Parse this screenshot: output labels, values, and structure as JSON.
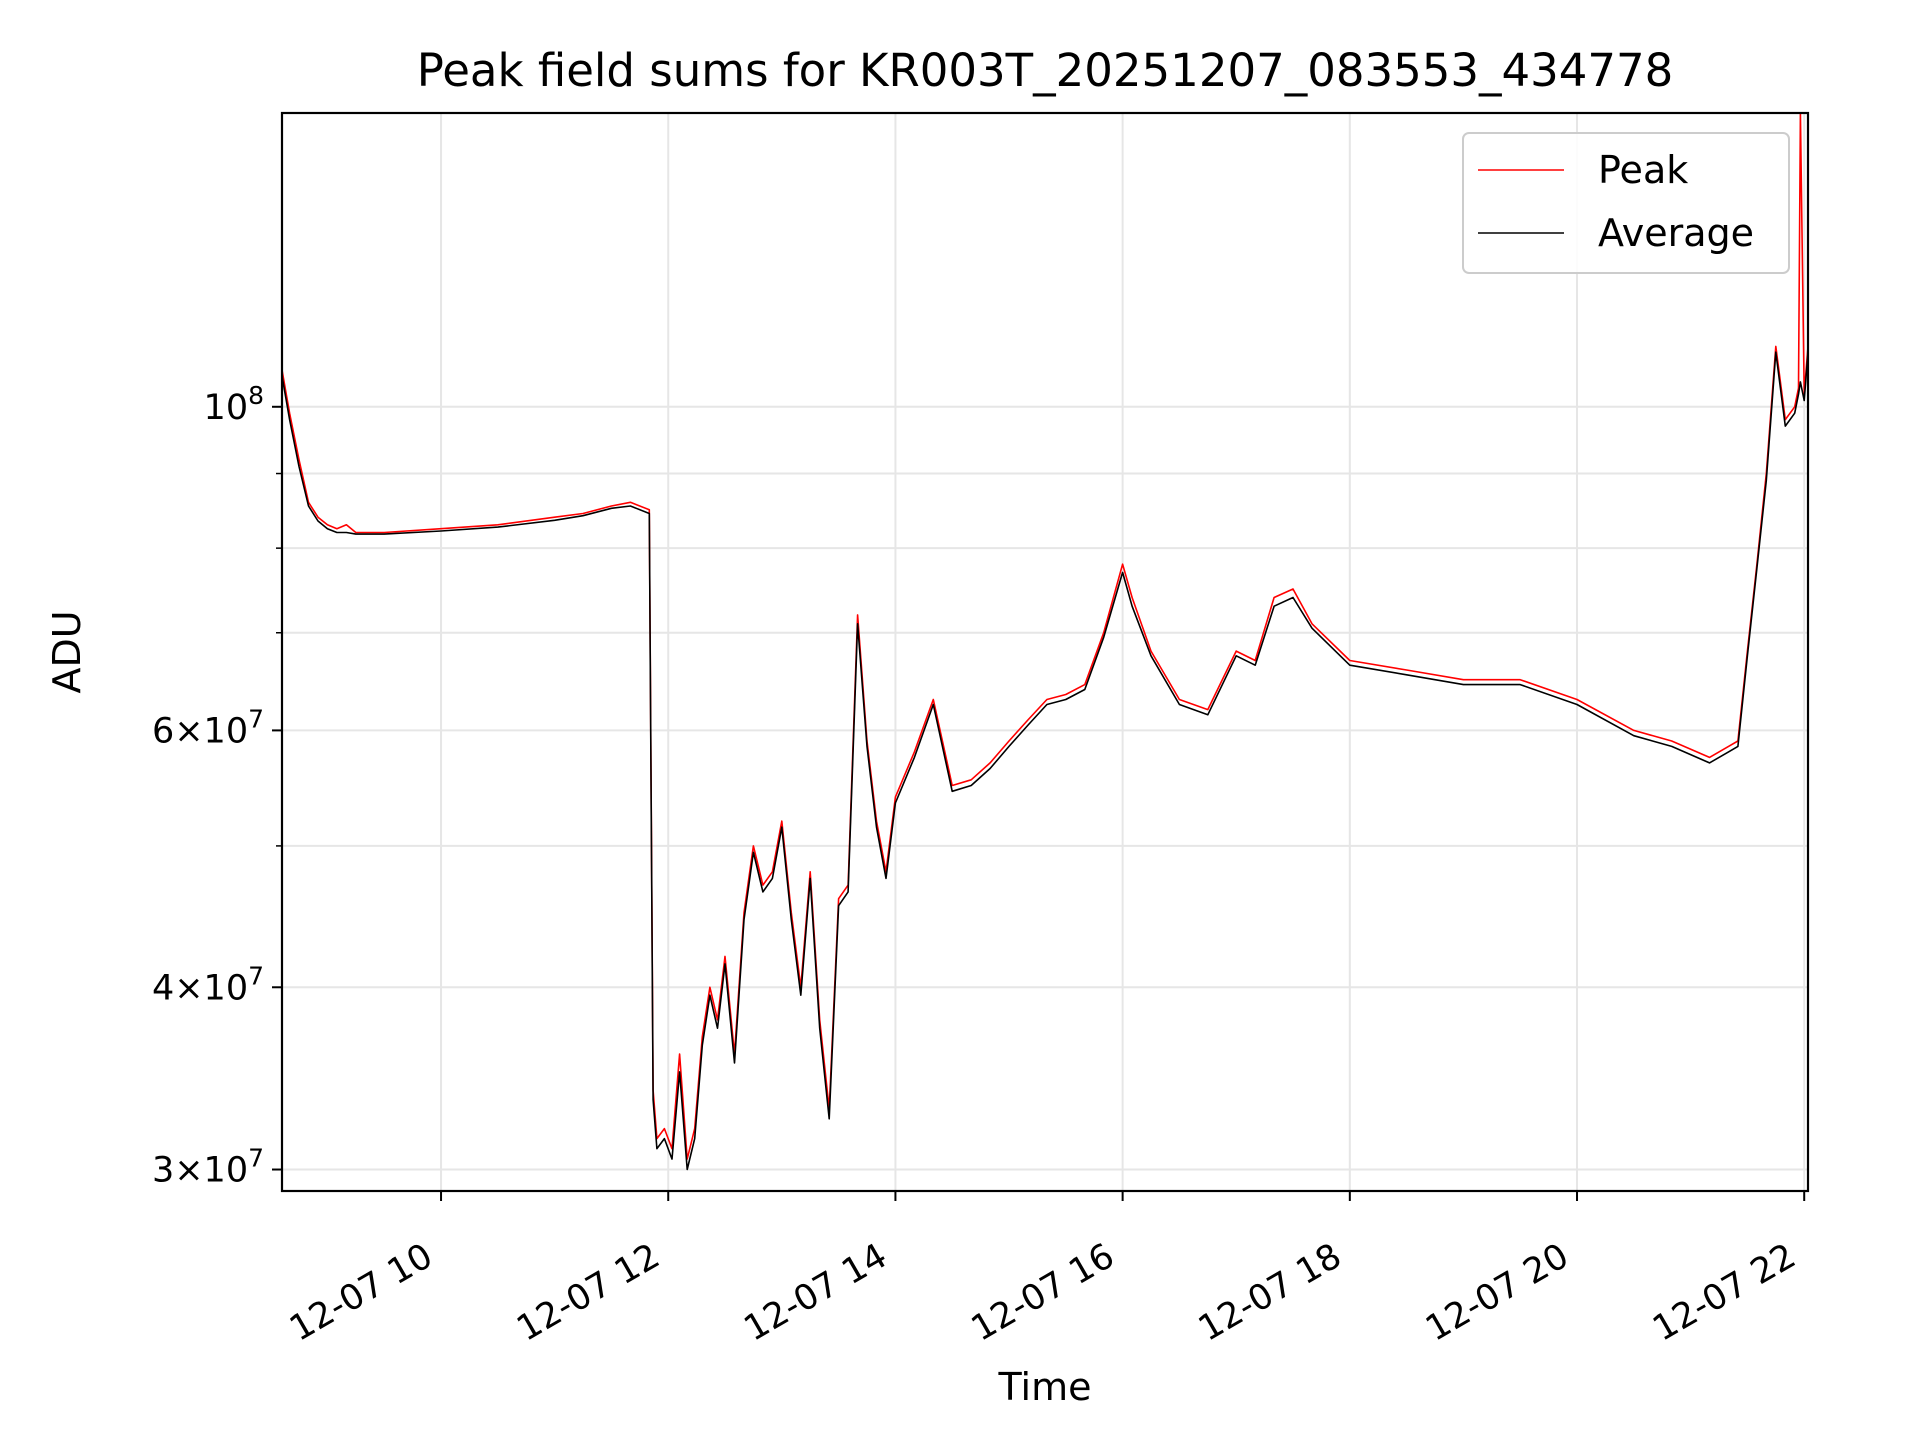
{
  "chart_data": {
    "type": "line",
    "title": "Peak field sums for KR003T_20251207_083553_434778",
    "xlabel": "Time",
    "ylabel": "ADU",
    "x_range": [
      "2025-12-07 08:36",
      "2025-12-07 22:02"
    ],
    "ylim": [
      29000000,
      159000000
    ],
    "y_scale": "log",
    "grid": true,
    "legend_position": "top-right",
    "x_ticks": [
      {
        "value": "2025-12-07 10:00",
        "label": "12-07 10"
      },
      {
        "value": "2025-12-07 12:00",
        "label": "12-07 12"
      },
      {
        "value": "2025-12-07 14:00",
        "label": "12-07 14"
      },
      {
        "value": "2025-12-07 16:00",
        "label": "12-07 16"
      },
      {
        "value": "2025-12-07 18:00",
        "label": "12-07 18"
      },
      {
        "value": "2025-12-07 20:00",
        "label": "12-07 20"
      },
      {
        "value": "2025-12-07 22:00",
        "label": "12-07 22"
      }
    ],
    "y_major_ticks": [
      {
        "value": 30000000,
        "mant": "3",
        "exp": "7"
      },
      {
        "value": 40000000,
        "mant": "4",
        "exp": "7"
      },
      {
        "value": 60000000,
        "mant": "6",
        "exp": "7"
      },
      {
        "value": 100000000,
        "mant": "",
        "exp": "8"
      }
    ],
    "y_minor_ticks": [
      50000000,
      70000000,
      80000000,
      90000000
    ],
    "series": [
      {
        "name": "Peak",
        "color": "#ff0000",
        "x": [
          "2025-12-07 08:36",
          "2025-12-07 08:40",
          "2025-12-07 08:45",
          "2025-12-07 08:50",
          "2025-12-07 08:55",
          "2025-12-07 09:00",
          "2025-12-07 09:05",
          "2025-12-07 09:10",
          "2025-12-07 09:15",
          "2025-12-07 09:30",
          "2025-12-07 10:00",
          "2025-12-07 10:30",
          "2025-12-07 11:00",
          "2025-12-07 11:15",
          "2025-12-07 11:30",
          "2025-12-07 11:40",
          "2025-12-07 11:50",
          "2025-12-07 11:52",
          "2025-12-07 11:54",
          "2025-12-07 11:58",
          "2025-12-07 12:02",
          "2025-12-07 12:06",
          "2025-12-07 12:10",
          "2025-12-07 12:14",
          "2025-12-07 12:18",
          "2025-12-07 12:22",
          "2025-12-07 12:26",
          "2025-12-07 12:30",
          "2025-12-07 12:35",
          "2025-12-07 12:40",
          "2025-12-07 12:45",
          "2025-12-07 12:50",
          "2025-12-07 12:55",
          "2025-12-07 13:00",
          "2025-12-07 13:05",
          "2025-12-07 13:10",
          "2025-12-07 13:15",
          "2025-12-07 13:20",
          "2025-12-07 13:25",
          "2025-12-07 13:30",
          "2025-12-07 13:35",
          "2025-12-07 13:40",
          "2025-12-07 13:45",
          "2025-12-07 13:50",
          "2025-12-07 13:55",
          "2025-12-07 14:00",
          "2025-12-07 14:10",
          "2025-12-07 14:20",
          "2025-12-07 14:30",
          "2025-12-07 14:40",
          "2025-12-07 14:50",
          "2025-12-07 15:00",
          "2025-12-07 15:10",
          "2025-12-07 15:20",
          "2025-12-07 15:30",
          "2025-12-07 15:40",
          "2025-12-07 15:50",
          "2025-12-07 16:00",
          "2025-12-07 16:05",
          "2025-12-07 16:15",
          "2025-12-07 16:30",
          "2025-12-07 16:45",
          "2025-12-07 17:00",
          "2025-12-07 17:10",
          "2025-12-07 17:20",
          "2025-12-07 17:30",
          "2025-12-07 17:40",
          "2025-12-07 18:00",
          "2025-12-07 18:30",
          "2025-12-07 19:00",
          "2025-12-07 19:30",
          "2025-12-07 20:00",
          "2025-12-07 20:30",
          "2025-12-07 20:50",
          "2025-12-07 21:10",
          "2025-12-07 21:20",
          "2025-12-07 21:25",
          "2025-12-07 21:30",
          "2025-12-07 21:35",
          "2025-12-07 21:40",
          "2025-12-07 21:45",
          "2025-12-07 21:50",
          "2025-12-07 21:55",
          "2025-12-07 21:57",
          "2025-12-07 21:58",
          "2025-12-07 22:00",
          "2025-12-07 22:02"
        ],
        "values": [
          106000000,
          99000000,
          92000000,
          86000000,
          84000000,
          83000000,
          82500000,
          83000000,
          82000000,
          82000000,
          82500000,
          83000000,
          84000000,
          84500000,
          85500000,
          86000000,
          85000000,
          34000000,
          31500000,
          32000000,
          31000000,
          36000000,
          30500000,
          32000000,
          37000000,
          40000000,
          38000000,
          42000000,
          36000000,
          45000000,
          50000000,
          47000000,
          48000000,
          52000000,
          45000000,
          40000000,
          48000000,
          38000000,
          33000000,
          46000000,
          47000000,
          72000000,
          59000000,
          52000000,
          48000000,
          54000000,
          58000000,
          63000000,
          55000000,
          55500000,
          57000000,
          59000000,
          61000000,
          63000000,
          63500000,
          64500000,
          70000000,
          78000000,
          74000000,
          68000000,
          63000000,
          62000000,
          68000000,
          67000000,
          74000000,
          75000000,
          71000000,
          67000000,
          66000000,
          65000000,
          65000000,
          63000000,
          60000000,
          59000000,
          57500000,
          58500000,
          59000000,
          68000000,
          78000000,
          90000000,
          110000000,
          98000000,
          100000000,
          103000000,
          159000000,
          102000000,
          110000000
        ]
      },
      {
        "name": "Average",
        "color": "#000000",
        "x": [
          "2025-12-07 08:36",
          "2025-12-07 08:40",
          "2025-12-07 08:45",
          "2025-12-07 08:50",
          "2025-12-07 08:55",
          "2025-12-07 09:00",
          "2025-12-07 09:05",
          "2025-12-07 09:10",
          "2025-12-07 09:15",
          "2025-12-07 09:30",
          "2025-12-07 10:00",
          "2025-12-07 10:30",
          "2025-12-07 11:00",
          "2025-12-07 11:15",
          "2025-12-07 11:30",
          "2025-12-07 11:40",
          "2025-12-07 11:50",
          "2025-12-07 11:52",
          "2025-12-07 11:54",
          "2025-12-07 11:58",
          "2025-12-07 12:02",
          "2025-12-07 12:06",
          "2025-12-07 12:10",
          "2025-12-07 12:14",
          "2025-12-07 12:18",
          "2025-12-07 12:22",
          "2025-12-07 12:26",
          "2025-12-07 12:30",
          "2025-12-07 12:35",
          "2025-12-07 12:40",
          "2025-12-07 12:45",
          "2025-12-07 12:50",
          "2025-12-07 12:55",
          "2025-12-07 13:00",
          "2025-12-07 13:05",
          "2025-12-07 13:10",
          "2025-12-07 13:15",
          "2025-12-07 13:20",
          "2025-12-07 13:25",
          "2025-12-07 13:30",
          "2025-12-07 13:35",
          "2025-12-07 13:40",
          "2025-12-07 13:45",
          "2025-12-07 13:50",
          "2025-12-07 13:55",
          "2025-12-07 14:00",
          "2025-12-07 14:10",
          "2025-12-07 14:20",
          "2025-12-07 14:30",
          "2025-12-07 14:40",
          "2025-12-07 14:50",
          "2025-12-07 15:00",
          "2025-12-07 15:10",
          "2025-12-07 15:20",
          "2025-12-07 15:30",
          "2025-12-07 15:40",
          "2025-12-07 15:50",
          "2025-12-07 16:00",
          "2025-12-07 16:05",
          "2025-12-07 16:15",
          "2025-12-07 16:30",
          "2025-12-07 16:45",
          "2025-12-07 17:00",
          "2025-12-07 17:10",
          "2025-12-07 17:20",
          "2025-12-07 17:30",
          "2025-12-07 17:40",
          "2025-12-07 18:00",
          "2025-12-07 18:30",
          "2025-12-07 19:00",
          "2025-12-07 19:30",
          "2025-12-07 20:00",
          "2025-12-07 20:30",
          "2025-12-07 20:50",
          "2025-12-07 21:10",
          "2025-12-07 21:20",
          "2025-12-07 21:25",
          "2025-12-07 21:30",
          "2025-12-07 21:35",
          "2025-12-07 21:40",
          "2025-12-07 21:45",
          "2025-12-07 21:50",
          "2025-12-07 21:55",
          "2025-12-07 21:57",
          "2025-12-07 21:58",
          "2025-12-07 22:00",
          "2025-12-07 22:02"
        ],
        "values": [
          105000000,
          98000000,
          91000000,
          85500000,
          83500000,
          82500000,
          82000000,
          82000000,
          81800000,
          81800000,
          82200000,
          82700000,
          83600000,
          84200000,
          85200000,
          85500000,
          84500000,
          33500000,
          31000000,
          31500000,
          30500000,
          35000000,
          30000000,
          31500000,
          36500000,
          39500000,
          37500000,
          41500000,
          35500000,
          44500000,
          49500000,
          46500000,
          47500000,
          51500000,
          44500000,
          39500000,
          47500000,
          37500000,
          32500000,
          45500000,
          46500000,
          71000000,
          58500000,
          51500000,
          47500000,
          53500000,
          57500000,
          62500000,
          54500000,
          55000000,
          56500000,
          58500000,
          60500000,
          62500000,
          63000000,
          64000000,
          69500000,
          77000000,
          73000000,
          67500000,
          62500000,
          61500000,
          67500000,
          66500000,
          73000000,
          74000000,
          70500000,
          66500000,
          65500000,
          64500000,
          64500000,
          62500000,
          59500000,
          58500000,
          57000000,
          58000000,
          58500000,
          67500000,
          77500000,
          89000000,
          109000000,
          97000000,
          99000000,
          102000000,
          104000000,
          101000000,
          109000000
        ]
      }
    ]
  }
}
